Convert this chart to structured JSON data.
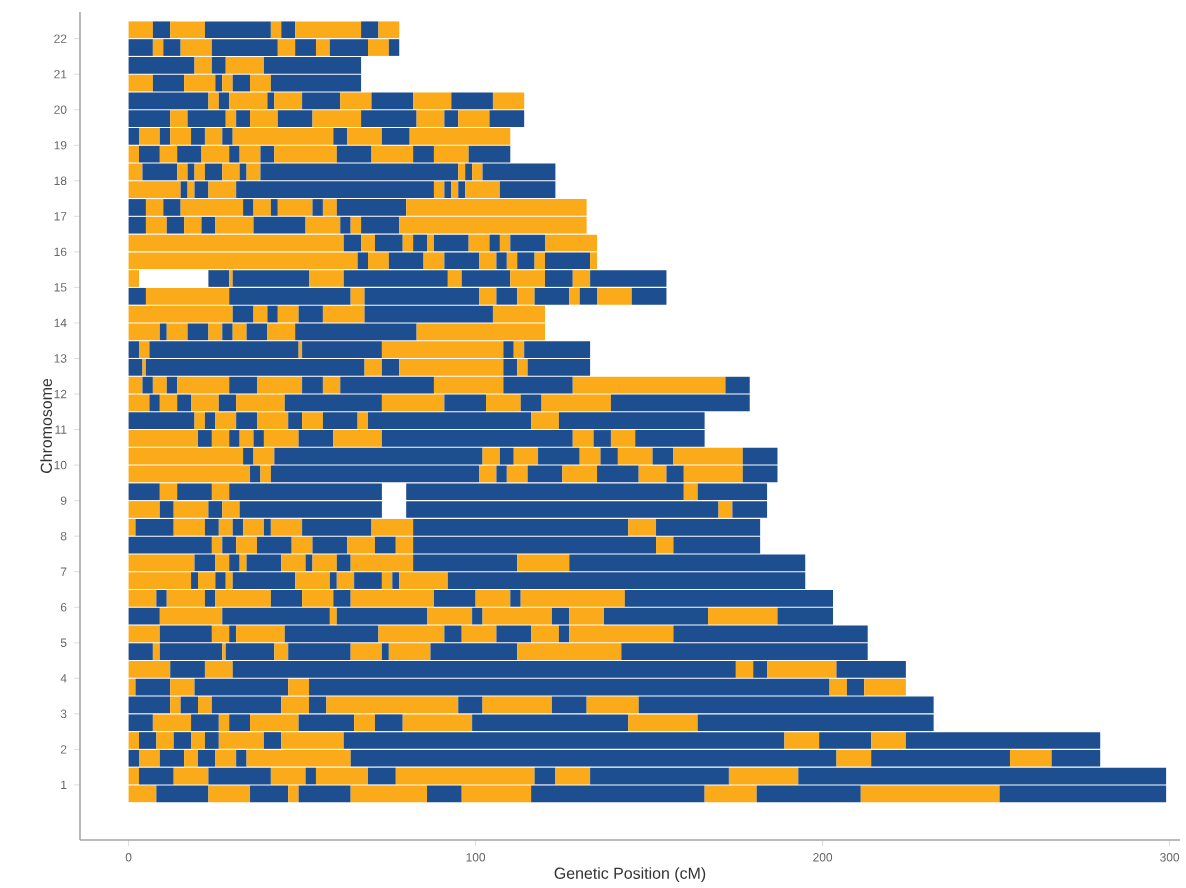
{
  "chart_data": {
    "type": "bar",
    "orientation": "horizontal",
    "xlabel": "Genetic Position (cM)",
    "ylabel": "Chromosome",
    "categories": [
      "22",
      null,
      "21",
      null,
      "20",
      null,
      "19",
      null,
      "18",
      null,
      "17",
      null,
      "16",
      null,
      "15",
      null,
      "14",
      null,
      "13",
      null,
      "12",
      null,
      "11",
      null,
      "10",
      null,
      "9",
      null,
      "8",
      null,
      "7",
      null,
      "6",
      null,
      "5",
      null,
      "4",
      null,
      "3",
      null,
      "2",
      null,
      "1",
      null
    ],
    "xlim": [
      -14,
      303
    ],
    "xticks": [
      0,
      100,
      200,
      300
    ],
    "series": [
      {
        "color": "#fbaa19",
        "base": [
          0,
          null,
          null,
          0,
          null,
          null,
          null,
          0,
          0,
          0,
          null,
          null,
          0,
          0,
          0,
          null,
          0,
          0,
          null,
          null,
          0,
          0,
          null,
          0,
          0,
          0,
          null,
          0,
          0,
          null,
          0,
          0,
          0,
          null,
          0,
          null,
          0,
          0,
          null,
          null,
          0,
          null,
          0,
          0
        ],
        "values": [
          7,
          null,
          null,
          7,
          null,
          null,
          null,
          3,
          4,
          15,
          null,
          null,
          62,
          66,
          3,
          null,
          30,
          9,
          null,
          null,
          4,
          6,
          null,
          20,
          33,
          35,
          null,
          9,
          2,
          null,
          19,
          18,
          8,
          null,
          9,
          null,
          12,
          2,
          null,
          null,
          3,
          null,
          3,
          8
        ]
      },
      {
        "color": "#1d4e8f",
        "base": [
          7,
          0,
          0,
          7,
          0,
          0,
          0,
          3,
          4,
          15,
          0,
          0,
          62,
          66,
          null,
          0,
          30,
          9,
          0,
          0,
          4,
          6,
          0,
          20,
          33,
          35,
          0,
          9,
          2,
          0,
          19,
          18,
          8,
          0,
          9,
          0,
          12,
          2,
          0,
          0,
          3,
          0,
          3,
          8
        ],
        "values": [
          5,
          7,
          19,
          9,
          23,
          12,
          3,
          6,
          10,
          2,
          5,
          5,
          5,
          3,
          null,
          5,
          6,
          2,
          3,
          4,
          3,
          3,
          19,
          4,
          3,
          3,
          9,
          4,
          11,
          24,
          6,
          2,
          3,
          9,
          15,
          7,
          10,
          10,
          12,
          7,
          5,
          3,
          10,
          15
        ]
      },
      {
        "color": "#fbaa19",
        "base": [
          12,
          7,
          19,
          16,
          23,
          12,
          3,
          9,
          14,
          17,
          5,
          5,
          67,
          69,
          null,
          5,
          36,
          11,
          3,
          4,
          7,
          9,
          19,
          24,
          36,
          38,
          9,
          13,
          13,
          24,
          25,
          20,
          11,
          9,
          24,
          7,
          22,
          12,
          12,
          7,
          8,
          3,
          13,
          23
        ],
        "values": [
          10,
          3,
          5,
          9,
          3,
          5,
          6,
          5,
          3,
          2,
          5,
          6,
          4,
          6,
          null,
          24,
          4,
          6,
          3,
          1,
          4,
          5,
          3,
          5,
          6,
          3,
          5,
          10,
          9,
          3,
          4,
          5,
          11,
          18,
          5,
          2,
          8,
          7,
          3,
          11,
          5,
          6,
          10,
          12
        ]
      },
      {
        "color": "#1d4e8f",
        "base": [
          22,
          10,
          24,
          25,
          26,
          17,
          9,
          14,
          17,
          19,
          10,
          11,
          71,
          75,
          23,
          29,
          40,
          17,
          6,
          5,
          11,
          14,
          22,
          29,
          42,
          41,
          14,
          23,
          22,
          27,
          29,
          25,
          22,
          27,
          29,
          9,
          30,
          19,
          15,
          18,
          13,
          9,
          23,
          35
        ],
        "values": [
          19,
          5,
          4,
          2,
          3,
          11,
          3,
          7,
          2,
          4,
          5,
          5,
          8,
          10,
          6,
          35,
          3,
          6,
          43,
          63,
          3,
          4,
          3,
          3,
          60,
          60,
          10,
          4,
          4,
          4,
          3,
          3,
          3,
          31,
          2,
          18,
          145,
          27,
          5,
          8,
          5,
          7,
          18,
          11
        ]
      },
      {
        "color": "#fbaa19",
        "base": [
          41,
          15,
          28,
          27,
          29,
          28,
          12,
          21,
          19,
          23,
          15,
          16,
          79,
          85,
          29,
          64,
          43,
          23,
          49,
          68,
          14,
          18,
          25,
          32,
          102,
          101,
          24,
          27,
          26,
          31,
          32,
          28,
          25,
          58,
          31,
          27,
          175,
          46,
          20,
          26,
          18,
          16,
          41,
          46
        ],
        "values": [
          3,
          9,
          11,
          3,
          11,
          3,
          6,
          8,
          3,
          8,
          18,
          5,
          3,
          6,
          1,
          4,
          6,
          4,
          1,
          5,
          15,
          8,
          6,
          4,
          5,
          5,
          5,
          5,
          4,
          6,
          2,
          2,
          16,
          2,
          14,
          1,
          5,
          6,
          4,
          3,
          4,
          4,
          10,
          3
        ]
      },
      {
        "color": "#1d4e8f",
        "base": [
          44,
          24,
          39,
          30,
          40,
          31,
          18,
          29,
          22,
          31,
          33,
          21,
          82,
          91,
          30,
          68,
          49,
          27,
          50,
          73,
          29,
          26,
          31,
          36,
          107,
          106,
          29,
          32,
          30,
          37,
          34,
          30,
          41,
          60,
          45,
          28,
          180,
          52,
          24,
          29,
          22,
          20,
          51,
          49
        ],
        "values": [
          4,
          19,
          28,
          5,
          2,
          4,
          4,
          3,
          5,
          57,
          3,
          4,
          4,
          10,
          22,
          33,
          7,
          3,
          23,
          5,
          8,
          5,
          6,
          3,
          4,
          3,
          44,
          41,
          3,
          10,
          10,
          18,
          9,
          26,
          27,
          14,
          4,
          150,
          20,
          6,
          4,
          5,
          3,
          15
        ]
      },
      {
        "color": "#fbaa19",
        "base": [
          48,
          43,
          null,
          35,
          42,
          35,
          22,
          32,
          27,
          88,
          36,
          25,
          86,
          101,
          52,
          101,
          56,
          30,
          73,
          78,
          37,
          31,
          37,
          39,
          111,
          109,
          null,
          null,
          33,
          47,
          44,
          48,
          50,
          86,
          72,
          42,
          184,
          202,
          44,
          35,
          26,
          25,
          54,
          64
        ],
        "values": [
          19,
          5,
          null,
          6,
          8,
          8,
          5,
          6,
          5,
          3,
          5,
          11,
          2,
          5,
          10,
          5,
          12,
          4,
          35,
          30,
          13,
          14,
          9,
          10,
          7,
          6,
          null,
          null,
          6,
          6,
          7,
          10,
          9,
          13,
          19,
          4,
          20,
          5,
          8,
          14,
          13,
          6,
          15,
          22
        ]
      },
      {
        "color": "#1d4e8f",
        "base": [
          67,
          48,
          null,
          41,
          50,
          43,
          27,
          38,
          32,
          91,
          41,
          36,
          88,
          106,
          62,
          106,
          68,
          34,
          108,
          108,
          50,
          45,
          46,
          49,
          118,
          115,
          80,
          80,
          39,
          53,
          51,
          58,
          59,
          99,
          91,
          46,
          204,
          207,
          52,
          49,
          39,
          31,
          69,
          86
        ],
        "values": [
          5,
          6,
          null,
          26,
          11,
          10,
          3,
          4,
          2,
          2,
          2,
          15,
          10,
          3,
          30,
          6,
          37,
          6,
          3,
          4,
          6,
          28,
          4,
          10,
          12,
          10,
          80,
          90,
          2,
          10,
          2,
          2,
          5,
          3,
          5,
          18,
          20,
          5,
          5,
          16,
          5,
          3,
          8,
          10
        ]
      },
      {
        "color": "#fbaa19",
        "base": [
          72,
          54,
          null,
          null,
          61,
          53,
          30,
          42,
          34,
          93,
          43,
          51,
          98,
          109,
          92,
          112,
          105,
          40,
          111,
          112,
          56,
          73,
          50,
          59,
          130,
          125,
          160,
          170,
          41,
          63,
          53,
          60,
          64,
          102,
          96,
          64,
          null,
          212,
          57,
          65,
          44,
          34,
          77,
          96
        ],
        "values": [
          6,
          4,
          null,
          null,
          9,
          14,
          29,
          18,
          4,
          2,
          10,
          10,
          6,
          3,
          4,
          5,
          15,
          8,
          3,
          3,
          5,
          18,
          6,
          14,
          6,
          10,
          4,
          4,
          9,
          8,
          7,
          5,
          24,
          20,
          10,
          9,
          null,
          12,
          38,
          6,
          18,
          30,
          40,
          20
        ]
      },
      {
        "color": "#1d4e8f",
        "base": [
          null,
          58,
          null,
          null,
          70,
          67,
          59,
          60,
          38,
          95,
          53,
          61,
          104,
          112,
          96,
          117,
          null,
          48,
          114,
          115,
          61,
          91,
          56,
          73,
          136,
          135,
          164,
          174,
          50,
          71,
          60,
          65,
          88,
          122,
          106,
          73,
          null,
          null,
          95,
          71,
          62,
          64,
          117,
          116
        ],
        "values": [
          null,
          11,
          null,
          null,
          12,
          16,
          4,
          10,
          57,
          2,
          3,
          3,
          3,
          5,
          14,
          10,
          null,
          35,
          19,
          18,
          27,
          12,
          10,
          55,
          5,
          12,
          20,
          10,
          20,
          6,
          4,
          8,
          12,
          5,
          10,
          2,
          null,
          null,
          7,
          8,
          127,
          140,
          6,
          50
        ]
      },
      {
        "color": "#fbaa19",
        "base": [
          null,
          69,
          null,
          null,
          82,
          83,
          63,
          70,
          95,
          97,
          56,
          64,
          107,
          117,
          110,
          127,
          null,
          83,
          null,
          null,
          88,
          103,
          66,
          128,
          141,
          147,
          null,
          null,
          70,
          77,
          64,
          73,
          100,
          127,
          116,
          75,
          null,
          null,
          102,
          79,
          189,
          204,
          123,
          166
        ],
        "values": [
          null,
          6,
          null,
          null,
          11,
          8,
          10,
          12,
          2,
          10,
          4,
          3,
          3,
          3,
          10,
          3,
          null,
          37,
          null,
          null,
          20,
          10,
          3,
          6,
          10,
          8,
          null,
          null,
          12,
          5,
          18,
          3,
          10,
          10,
          8,
          12,
          null,
          null,
          20,
          20,
          10,
          10,
          10,
          15
        ]
      },
      {
        "color": "#1d4e8f",
        "base": [
          null,
          75,
          null,
          null,
          93,
          91,
          73,
          82,
          97,
          107,
          60,
          67,
          110,
          120,
          120,
          130,
          null,
          null,
          null,
          null,
          108,
          113,
          69,
          134,
          151,
          155,
          null,
          null,
          82,
          82,
          82,
          76,
          110,
          137,
          124,
          87,
          null,
          null,
          122,
          99,
          199,
          214,
          133,
          181
        ],
        "values": [
          null,
          3,
          null,
          null,
          12,
          4,
          8,
          6,
          2,
          16,
          20,
          11,
          10,
          13,
          8,
          5,
          null,
          null,
          null,
          null,
          20,
          6,
          47,
          5,
          6,
          5,
          null,
          null,
          62,
          70,
          30,
          2,
          3,
          30,
          3,
          25,
          null,
          null,
          10,
          45,
          15,
          40,
          40,
          30
        ]
      },
      {
        "color": "#fbaa19",
        "base": [
          null,
          null,
          null,
          null,
          105,
          95,
          81,
          88,
          99,
          null,
          80,
          78,
          120,
          133,
          128,
          135,
          null,
          null,
          null,
          null,
          128,
          119,
          116,
          139,
          157,
          160,
          null,
          null,
          144,
          152,
          112,
          78,
          113,
          167,
          127,
          112,
          null,
          null,
          132,
          144,
          214,
          254,
          173,
          211
        ],
        "values": [
          null,
          null,
          null,
          null,
          9,
          9,
          29,
          10,
          3,
          null,
          52,
          54,
          15,
          2,
          5,
          10,
          null,
          null,
          null,
          null,
          44,
          20,
          8,
          7,
          20,
          17,
          null,
          null,
          8,
          5,
          15,
          14,
          30,
          20,
          30,
          30,
          null,
          null,
          15,
          20,
          10,
          12,
          20,
          40
        ]
      },
      {
        "color": "#1d4e8f",
        "base": [
          null,
          null,
          null,
          null,
          null,
          104,
          null,
          98,
          102,
          null,
          null,
          null,
          null,
          null,
          133,
          145,
          null,
          null,
          null,
          null,
          172,
          139,
          124,
          146,
          177,
          177,
          null,
          null,
          152,
          157,
          127,
          92,
          143,
          187,
          157,
          142,
          null,
          null,
          147,
          164,
          224,
          266,
          193,
          251
        ],
        "values": [
          null,
          null,
          null,
          null,
          null,
          10,
          null,
          12,
          21,
          null,
          null,
          null,
          null,
          null,
          22,
          10,
          null,
          null,
          null,
          null,
          7,
          40,
          42,
          20,
          10,
          10,
          null,
          null,
          30,
          25,
          68,
          103,
          60,
          16,
          56,
          71,
          null,
          null,
          85,
          68,
          56,
          14,
          106,
          48
        ]
      }
    ]
  }
}
